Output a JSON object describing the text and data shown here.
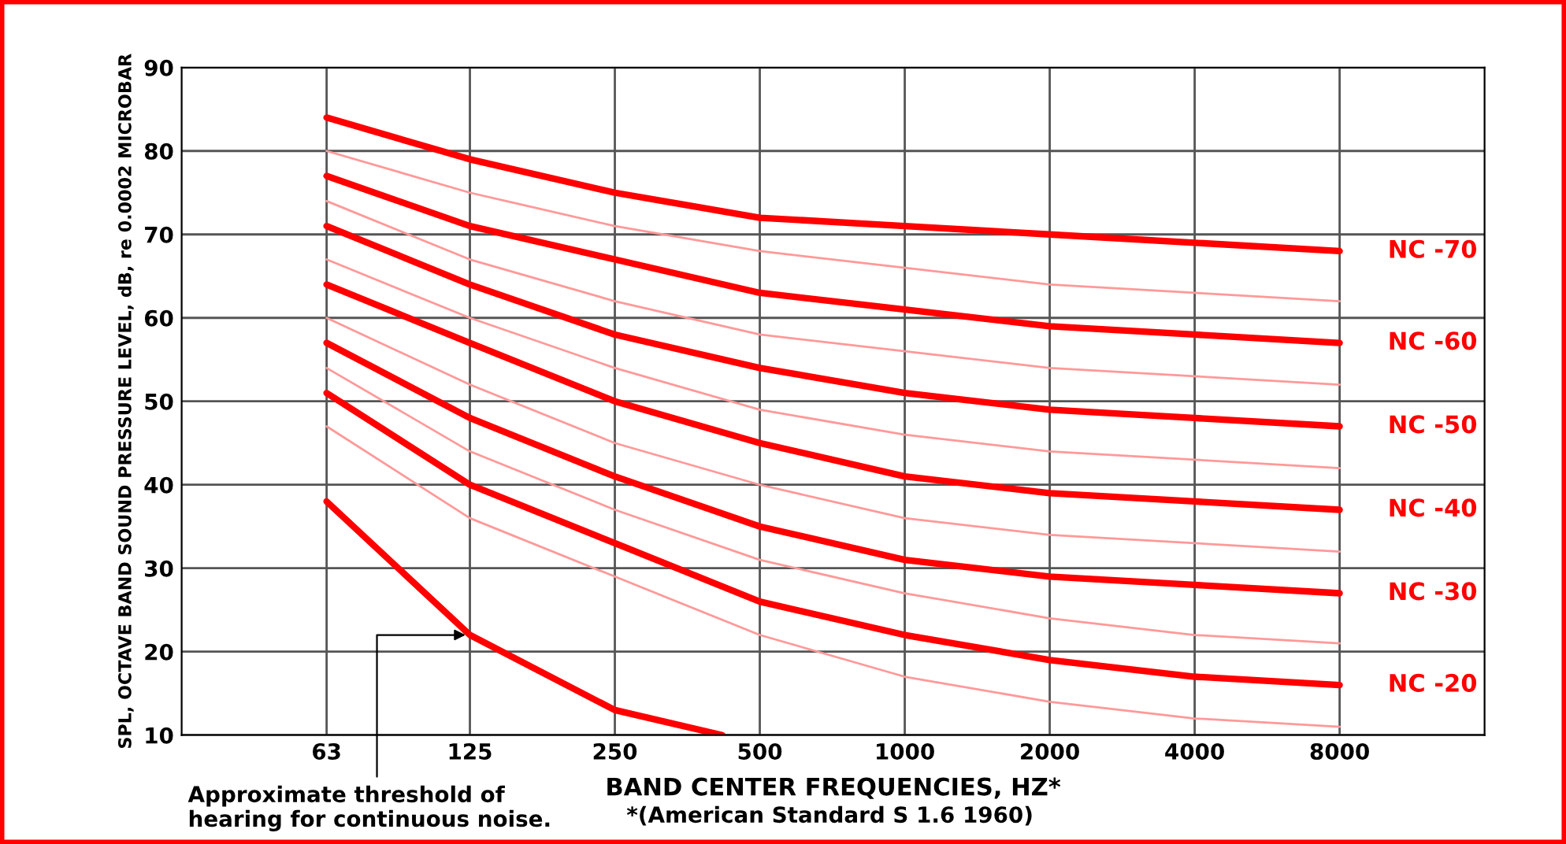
{
  "chart_data": {
    "type": "line",
    "xlabel": "BAND CENTER FREQUENCIES, HZ*",
    "ylabel": "SPL, OCTAVE BAND SOUND PRESSURE LEVEL, dB, re 0.0002 MICROBAR",
    "x": [
      63,
      125,
      250,
      500,
      1000,
      2000,
      4000,
      8000
    ],
    "log": "x",
    "xlim": [
      31.5,
      16000
    ],
    "xticks": [
      63,
      125,
      250,
      500,
      1000,
      2000,
      4000,
      8000
    ],
    "ylim": [
      10,
      90
    ],
    "yticks": [
      10,
      20,
      30,
      40,
      50,
      60,
      70,
      80,
      90
    ],
    "grid": true,
    "legend": false,
    "marker": "none",
    "line_style": "solid",
    "series": [
      {
        "name": "NC -70",
        "color": "#ff0000",
        "values": [
          84,
          79,
          75,
          72,
          71,
          70,
          69,
          68
        ]
      },
      {
        "color": "#ff9999",
        "values": [
          80,
          75,
          71,
          68,
          66,
          64,
          63,
          62
        ]
      },
      {
        "name": "NC -60",
        "color": "#ff0000",
        "values": [
          77,
          71,
          67,
          63,
          61,
          59,
          58,
          57
        ]
      },
      {
        "color": "#ff9999",
        "values": [
          74,
          67,
          62,
          58,
          56,
          54,
          53,
          52
        ]
      },
      {
        "name": "NC -50",
        "color": "#ff0000",
        "values": [
          71,
          64,
          58,
          54,
          51,
          49,
          48,
          47
        ]
      },
      {
        "color": "#ff9999",
        "values": [
          67,
          60,
          54,
          49,
          46,
          44,
          43,
          42
        ]
      },
      {
        "name": "NC -40",
        "color": "#ff0000",
        "values": [
          64,
          57,
          50,
          45,
          41,
          39,
          38,
          37
        ]
      },
      {
        "color": "#ff9999",
        "values": [
          60,
          52,
          45,
          40,
          36,
          34,
          33,
          32
        ]
      },
      {
        "name": "NC -30",
        "color": "#ff0000",
        "values": [
          57,
          48,
          41,
          35,
          31,
          29,
          28,
          27
        ]
      },
      {
        "color": "#ff9999",
        "values": [
          54,
          44,
          37,
          31,
          27,
          24,
          22,
          21
        ]
      },
      {
        "name": "NC -20",
        "color": "#ff0000",
        "values": [
          51,
          40,
          33,
          26,
          22,
          19,
          17,
          16
        ]
      },
      {
        "color": "#ff9999",
        "values": [
          47,
          36,
          29,
          22,
          17,
          14,
          12,
          11
        ]
      },
      {
        "color": "#ff0000",
        "x": [
          63,
          125,
          250,
          418
        ],
        "values": [
          38,
          22,
          13,
          10
        ]
      }
    ],
    "annotations": [
      {
        "text": "Approximate threshold of\nhearing for continuous noise.",
        "x": 125,
        "y": 22
      },
      "*(American Standard S 1.6 1960)"
    ]
  }
}
